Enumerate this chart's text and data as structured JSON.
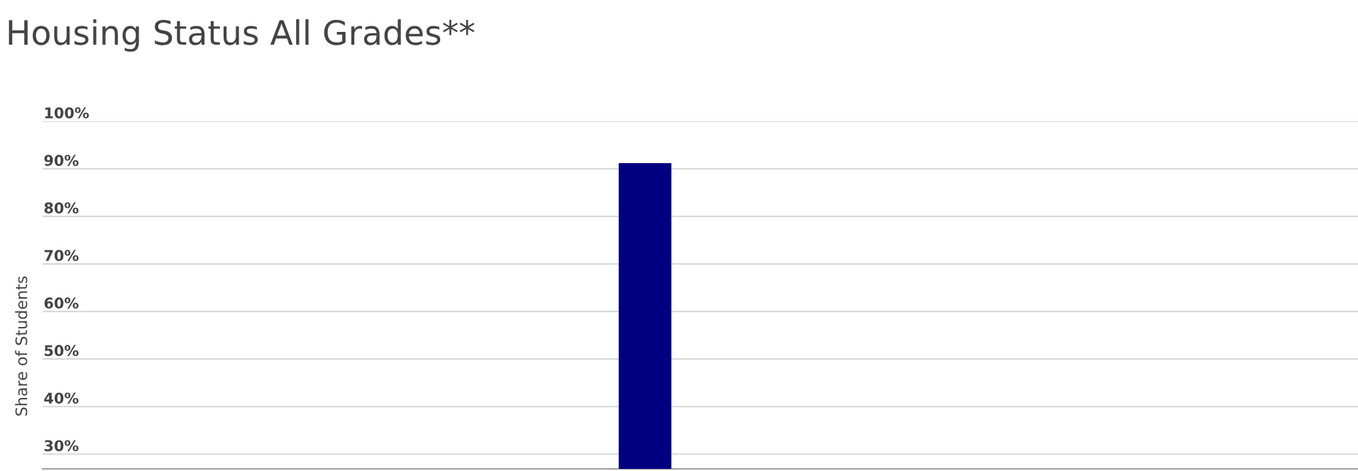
{
  "chart_data": {
    "type": "bar",
    "title": "Housing Status All Grades**",
    "ylabel": "Share of Students",
    "categories": [
      null
    ],
    "values": [
      91.2
    ],
    "color": "#000080",
    "ylim": [
      26.9,
      100
    ],
    "yticks": [
      {
        "value": 30,
        "label": "30%"
      },
      {
        "value": 40,
        "label": "40%"
      },
      {
        "value": 50,
        "label": "50%"
      },
      {
        "value": 60,
        "label": "60%"
      },
      {
        "value": 70,
        "label": "70%"
      },
      {
        "value": 80,
        "label": "80%"
      },
      {
        "value": 90,
        "label": "90%"
      },
      {
        "value": 100,
        "label": "100%"
      }
    ],
    "grid": "y"
  }
}
